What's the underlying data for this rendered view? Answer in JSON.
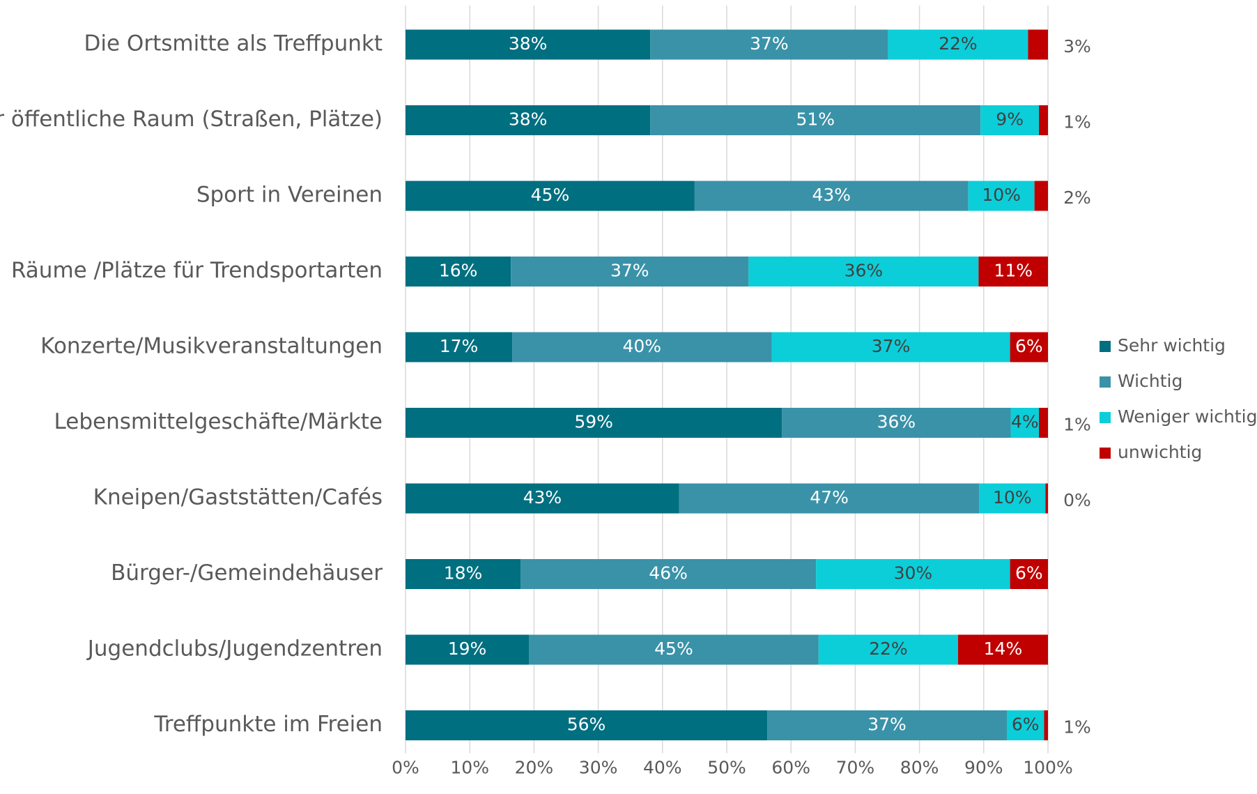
{
  "chart_data": {
    "type": "stacked_bar_horizontal",
    "categories": [
      "Die Ortsmitte als Treffpunkt",
      "Der öffentliche Raum (Straßen, Plätze)",
      "Sport in Vereinen",
      "Räume /Plätze für Trendsportarten",
      "Konzerte/Musikveranstaltungen",
      "Lebensmittelgeschäfte/Märkte",
      "Kneipen/Gaststätten/Cafés",
      "Bürger-/Gemeindehäuser",
      "Jugendclubs/Jugendzentren",
      "Treffpunkte im Freien"
    ],
    "series": [
      {
        "name": "Sehr wichtig",
        "color": "#006f80",
        "values": [
          38.1,
          38.1,
          45.0,
          16.4,
          16.6,
          58.6,
          42.6,
          17.9,
          19.2,
          56.3
        ],
        "value_labels": [
          "38%",
          "38%",
          "45%",
          "16%",
          "17%",
          "59%",
          "43%",
          "18%",
          "19%",
          "56%"
        ]
      },
      {
        "name": "Wichtig",
        "color": "#3a92a8",
        "values": [
          37.0,
          51.4,
          42.6,
          37.0,
          40.4,
          35.6,
          46.7,
          46.0,
          45.1,
          37.3
        ],
        "value_labels": [
          "37%",
          "51%",
          "43%",
          "37%",
          "40%",
          "36%",
          "47%",
          "46%",
          "45%",
          "37%"
        ]
      },
      {
        "name": "Weniger wichtig",
        "color": "#0cced9",
        "values": [
          21.8,
          9.1,
          10.3,
          35.8,
          37.1,
          4.4,
          10.3,
          30.2,
          21.7,
          5.8
        ],
        "value_labels": [
          "22%",
          "9%",
          "10%",
          "36%",
          "37%",
          "4%",
          "10%",
          "30%",
          "22%",
          "6%"
        ]
      },
      {
        "name": "unwichtig",
        "color": "#c00000",
        "values": [
          3.1,
          1.4,
          2.1,
          10.8,
          5.9,
          1.4,
          0.4,
          5.9,
          14.0,
          0.6
        ],
        "value_labels": [
          "3%",
          "1%",
          "2%",
          "11%",
          "6%",
          "1%",
          "0%",
          "6%",
          "14%",
          "1%"
        ]
      }
    ],
    "xlim": [
      0,
      100
    ],
    "xticks": [
      {
        "value": 0,
        "label": "0%"
      },
      {
        "value": 10,
        "label": "10%"
      },
      {
        "value": 20,
        "label": "20%"
      },
      {
        "value": 30,
        "label": "30%"
      },
      {
        "value": 40,
        "label": "40%"
      },
      {
        "value": 50,
        "label": "50%"
      },
      {
        "value": 60,
        "label": "60%"
      },
      {
        "value": 70,
        "label": "70%"
      },
      {
        "value": 80,
        "label": "80%"
      },
      {
        "value": 90,
        "label": "90%"
      },
      {
        "value": 100,
        "label": "100%"
      }
    ],
    "grid": true,
    "legend": "right"
  }
}
